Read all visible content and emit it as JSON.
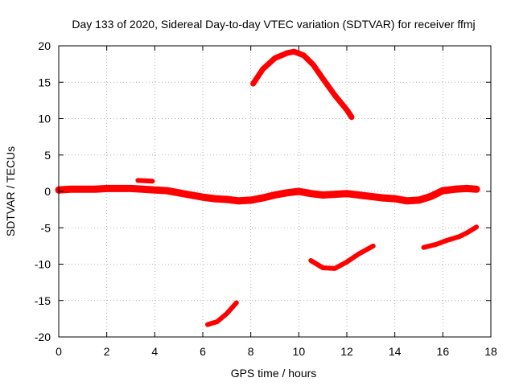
{
  "chart_data": {
    "type": "line",
    "title": "Day 133 of 2020, Sidereal Day-to-day VTEC variation (SDTVAR) for receiver ffmj",
    "xlabel": "GPS time / hours",
    "ylabel": "SDTVAR / TECUs",
    "xlim": [
      0,
      18
    ],
    "ylim": [
      -20,
      20
    ],
    "xticks": [
      0,
      2,
      4,
      6,
      8,
      10,
      12,
      14,
      16,
      18
    ],
    "yticks": [
      -20,
      -15,
      -10,
      -5,
      0,
      5,
      10,
      15,
      20
    ],
    "grid": true,
    "color": "#ff0000",
    "series": [
      {
        "name": "track-main",
        "x": [
          0.0,
          0.5,
          1.0,
          1.5,
          2.0,
          2.5,
          3.0,
          3.5,
          4.0,
          4.5,
          5.0,
          5.5,
          6.0,
          6.5,
          7.0,
          7.5,
          8.0,
          8.5,
          9.0,
          9.5,
          10.0,
          10.5,
          11.0,
          11.5,
          12.0,
          12.5,
          13.0,
          13.5,
          14.0,
          14.5,
          15.0,
          15.5,
          16.0,
          16.5,
          17.0,
          17.4
        ],
        "y": [
          0.2,
          0.3,
          0.3,
          0.3,
          0.4,
          0.4,
          0.4,
          0.3,
          0.2,
          0.1,
          -0.2,
          -0.5,
          -0.8,
          -1.0,
          -1.1,
          -1.3,
          -1.2,
          -0.9,
          -0.5,
          -0.2,
          0.0,
          -0.3,
          -0.5,
          -0.4,
          -0.3,
          -0.5,
          -0.7,
          -0.9,
          -1.0,
          -1.3,
          -1.2,
          -0.7,
          0.1,
          0.3,
          0.4,
          0.3
        ],
        "width": 9
      },
      {
        "name": "track-short",
        "x": [
          3.3,
          3.9
        ],
        "y": [
          1.5,
          1.4
        ],
        "width": 6
      },
      {
        "name": "track-high-arc",
        "x": [
          8.1,
          8.5,
          9.0,
          9.5,
          9.8,
          10.2,
          10.6,
          11.0,
          11.5,
          12.0,
          12.2
        ],
        "y": [
          14.8,
          16.8,
          18.3,
          19.0,
          19.2,
          18.7,
          17.4,
          15.5,
          13.2,
          11.2,
          10.2
        ],
        "width": 7
      },
      {
        "name": "track-low-a",
        "x": [
          6.2,
          6.6,
          7.0,
          7.4
        ],
        "y": [
          -18.3,
          -17.9,
          -16.8,
          -15.3
        ],
        "width": 6
      },
      {
        "name": "track-low-b",
        "x": [
          10.5,
          11.0,
          11.5,
          12.0,
          12.5,
          13.1
        ],
        "y": [
          -9.5,
          -10.5,
          -10.6,
          -9.7,
          -8.6,
          -7.5
        ],
        "width": 6
      },
      {
        "name": "track-low-c",
        "x": [
          15.2,
          15.7,
          16.2,
          16.7,
          17.0,
          17.4
        ],
        "y": [
          -7.7,
          -7.3,
          -6.7,
          -6.2,
          -5.7,
          -4.9
        ],
        "width": 6
      }
    ]
  }
}
